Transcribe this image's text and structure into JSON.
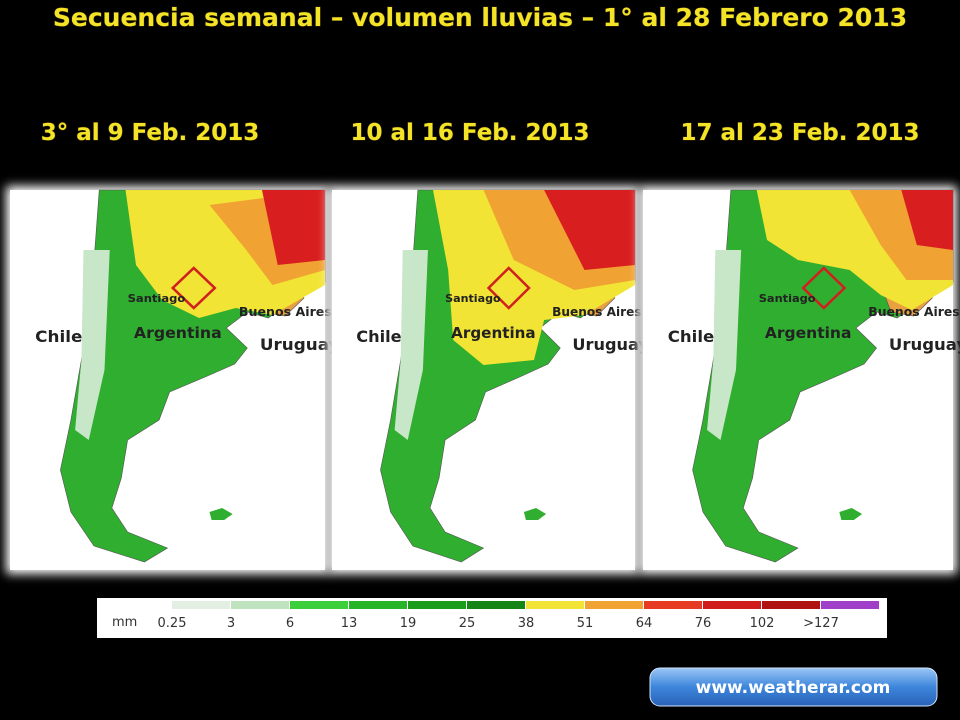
{
  "title": "Secuencia semanal – volumen lluvias – 1° al 28 Febrero 2013",
  "panels": [
    {
      "label": "3° al 9 Feb. 2013",
      "places": {
        "chile": "Chile",
        "santiago": "Santiago",
        "argentina": "Argentina",
        "buenos_aires": "Buenos Aires",
        "uruguay": "Uruguay"
      }
    },
    {
      "label": "10 al 16 Feb. 2013",
      "places": {
        "chile": "Chile",
        "santiago": "Santiago",
        "argentina": "Argentina",
        "buenos_aires": "Buenos Aires",
        "uruguay": "Uruguay"
      }
    },
    {
      "label": "17 al 23 Feb. 2013",
      "places": {
        "chile": "Chile",
        "santiago": "Santiago",
        "argentina": "Argentina",
        "buenos_aires": "Buenos Aires",
        "uruguay": "Uruguay"
      }
    }
  ],
  "legend": {
    "unit": "mm",
    "items": [
      {
        "label": "0.25",
        "color": "#e4efe4"
      },
      {
        "label": "3",
        "color": "#bfe3bf"
      },
      {
        "label": "6",
        "color": "#3ccf3c"
      },
      {
        "label": "13",
        "color": "#27b427"
      },
      {
        "label": "19",
        "color": "#1c9c1c"
      },
      {
        "label": "25",
        "color": "#158515"
      },
      {
        "label": "38",
        "color": "#f2e434"
      },
      {
        "label": "51",
        "color": "#f0a232"
      },
      {
        "label": "64",
        "color": "#e63a22"
      },
      {
        "label": "76",
        "color": "#d01c1c"
      },
      {
        "label": "102",
        "color": "#b01212"
      },
      {
        "label": ">127",
        "color": "#a040c8"
      }
    ]
  },
  "link": "www.weatherar.com"
}
